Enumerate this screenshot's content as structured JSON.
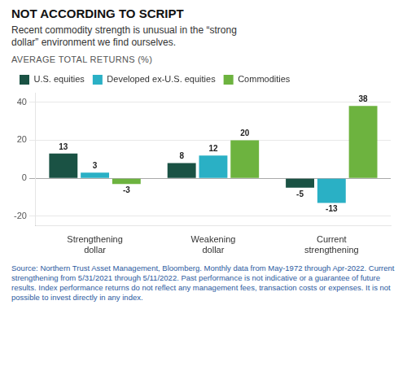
{
  "chart_data": {
    "type": "bar",
    "title": "NOT ACCORDING TO SCRIPT",
    "subtitle": "Recent commodity strength is unusual in the “strong\ndollar” environment we find ourselves.",
    "ylabel": "AVERAGE TOTAL RETURNS (%)",
    "categories": [
      "Strengthening\ndollar",
      "Weakening\ndollar",
      "Current\nstrengthening"
    ],
    "series": [
      {
        "name": "U.S. equities",
        "color": "#1a5244",
        "values": [
          13,
          8,
          -5
        ]
      },
      {
        "name": "Developed ex-U.S. equities",
        "color": "#2ab0c5",
        "values": [
          3,
          12,
          -13
        ]
      },
      {
        "name": "Commodities",
        "color": "#6db33f",
        "values": [
          -3,
          20,
          38
        ]
      }
    ],
    "ylim": [
      -25,
      45
    ],
    "yticks": [
      -20,
      0,
      20,
      40
    ],
    "grid": true,
    "legend": "top",
    "data_labels": true,
    "footnote": "Source: Northern Trust Asset Management, Bloomberg. Monthly data from May-1972 through Apr-2022. Current strengthening from 5/31/2021 through 5/11/2022. Past performance is not indicative or a guarantee of future results. Index performance returns do not reflect any management fees, transaction costs or expenses. It is not possible to invest directly in any index."
  }
}
